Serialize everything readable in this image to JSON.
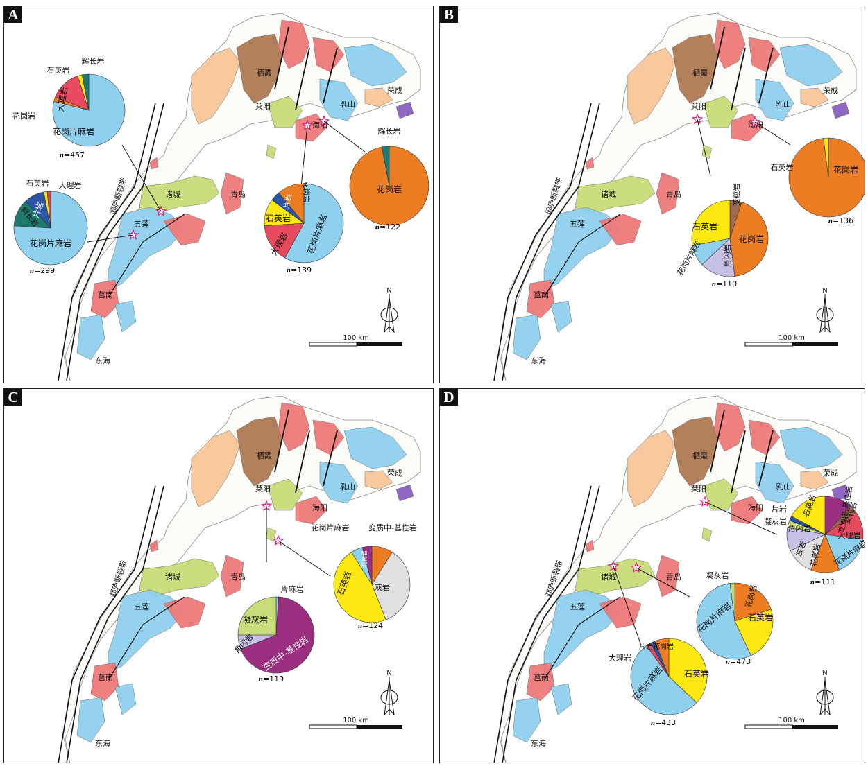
{
  "colors": {
    "granite_gneiss": "#8fd0ef",
    "granite": "#ed7d22",
    "quartzite": "#fde911",
    "marble": "#e84a5f",
    "gabbro": "#1e7a73",
    "schist": "#2b55a6",
    "plagioclase": "#1f7a6e",
    "tuff": "#c8dd7a",
    "amphibolite": "#c7c0e4",
    "meta_mafic": "#9b2f7f",
    "limestone": "#e0e0e0",
    "granulite": "#a06a4b",
    "felsic_gneiss": "#8fd0ef"
  },
  "panels": {
    "A": {
      "label": "A",
      "places": {
        "qixia": "栖霞",
        "laiyang": "莱阳",
        "haiyang": "海阳",
        "rushan": "乳山",
        "rongcheng": "荣成",
        "zhucheng": "诸城",
        "qingdao": "青岛",
        "wulian": "五莲",
        "junan": "莒南",
        "donghai": "东海"
      },
      "fault": "郯庐断裂带",
      "north": "N",
      "scale": "100 km",
      "pies": [
        {
          "n": "n=457",
          "slices": [
            {
              "name": "花岗片麻岩",
              "value": 79
            },
            {
              "name": "花岗岩",
              "value": 2
            },
            {
              "name": "大理岩",
              "value": 14
            },
            {
              "name": "石英岩",
              "value": 2
            },
            {
              "name": "辉长岩",
              "value": 3
            }
          ]
        },
        {
          "n": "n=299",
          "slices": [
            {
              "name": "花岗片麻岩",
              "value": 76
            },
            {
              "name": "斜长岩",
              "value": 12
            },
            {
              "name": "片岩",
              "value": 9
            },
            {
              "name": "石英岩",
              "value": 1.5
            },
            {
              "name": "大理岩",
              "value": 1.5
            }
          ]
        },
        {
          "n": "n=139",
          "slices": [
            {
              "name": "花岗片麻岩",
              "value": 58
            },
            {
              "name": "大理岩",
              "value": 16
            },
            {
              "name": "石英岩",
              "value": 11
            },
            {
              "name": "片岩",
              "value": 4
            },
            {
              "name": "花岗岩",
              "value": 11
            }
          ]
        },
        {
          "n": "n=122",
          "slices": [
            {
              "name": "花岗岩",
              "value": 97
            },
            {
              "name": "辉长岩",
              "value": 3
            }
          ]
        }
      ]
    },
    "B": {
      "label": "B",
      "places": {
        "qixia": "栖霞",
        "laiyang": "莱阳",
        "haiyang": "海阳",
        "rushan": "乳山",
        "rongcheng": "荣成",
        "zhucheng": "诸城",
        "qingdao": "青岛",
        "wulian": "五莲",
        "junan": "莒南",
        "donghai": "东海"
      },
      "fault": "郯庐断裂带",
      "north": "N",
      "scale": "100 km",
      "pies": [
        {
          "n": "n=110",
          "slices": [
            {
              "name": "变粒岩",
              "value": 5
            },
            {
              "name": "花岗岩",
              "value": 43
            },
            {
              "name": "角闪岩",
              "value": 15
            },
            {
              "name": "花岗片麻岩",
              "value": 9
            },
            {
              "name": "石英岩",
              "value": 28
            }
          ]
        },
        {
          "n": "n=136",
          "slices": [
            {
              "name": "花岗岩",
              "value": 98
            },
            {
              "name": "石英岩",
              "value": 2
            }
          ]
        }
      ]
    },
    "C": {
      "label": "C",
      "places": {
        "qixia": "栖霞",
        "laiyang": "莱阳",
        "haiyang": "海阳",
        "rushan": "乳山",
        "rongcheng": "荣成",
        "zhucheng": "诸城",
        "qingdao": "青岛",
        "wulian": "五莲",
        "junan": "莒南",
        "donghai": "东海"
      },
      "fault": "郯庐断裂带",
      "north": "N",
      "scale": "100 km",
      "pies": [
        {
          "n": "n=119",
          "slices": [
            {
              "name": "片麻岩",
              "value": 1
            },
            {
              "name": "变质中-基性岩",
              "value": 68
            },
            {
              "name": "角闪岩",
              "value": 6
            },
            {
              "name": "凝灰岩",
              "value": 25
            }
          ]
        },
        {
          "n": "n=124",
          "slices": [
            {
              "name": "花岗岩",
              "value": 9
            },
            {
              "name": "灰岩",
              "value": 35
            },
            {
              "name": "石英岩",
              "value": 47
            },
            {
              "name": "花岗片麻岩",
              "value": 5
            },
            {
              "name": "变质中-基性岩",
              "value": 4
            }
          ]
        }
      ]
    },
    "D": {
      "label": "D",
      "places": {
        "qixia": "栖霞",
        "laiyang": "莱阳",
        "haiyang": "海阳",
        "rushan": "乳山",
        "rongcheng": "荣成",
        "zhucheng": "诸城",
        "qingdao": "青岛",
        "wulian": "五莲",
        "junan": "莒南",
        "donghai": "东海"
      },
      "fault": "郯庐断裂带",
      "north": "N",
      "scale": "100 km",
      "pies": [
        {
          "n": "n=433",
          "slices": [
            {
              "name": "石英岩",
              "value": 37
            },
            {
              "name": "花岗片麻岩",
              "value": 53
            },
            {
              "name": "大理岩",
              "value": 2
            },
            {
              "name": "片岩",
              "value": 2
            },
            {
              "name": "花岗岩",
              "value": 6
            }
          ]
        },
        {
          "n": "n=473",
          "slices": [
            {
              "name": "花岗岩",
              "value": 20
            },
            {
              "name": "石英岩",
              "value": 23
            },
            {
              "name": "花岗片麻岩",
              "value": 55
            },
            {
              "name": "凝灰岩",
              "value": 2
            }
          ]
        },
        {
          "n": "n=111",
          "slices": [
            {
              "name": "变质中-基性岩",
              "value": 12
            },
            {
              "name": "变粒岩",
              "value": 3
            },
            {
              "name": "大理岩",
              "value": 12
            },
            {
              "name": "花岗片麻岩",
              "value": 17
            },
            {
              "name": "花岗岩",
              "value": 12
            },
            {
              "name": "灰岩",
              "value": 12
            },
            {
              "name": "角闪岩",
              "value": 10
            },
            {
              "name": "凝灰岩",
              "value": 3
            },
            {
              "name": "片岩",
              "value": 2
            },
            {
              "name": "石英岩",
              "value": 17
            }
          ]
        }
      ]
    }
  }
}
